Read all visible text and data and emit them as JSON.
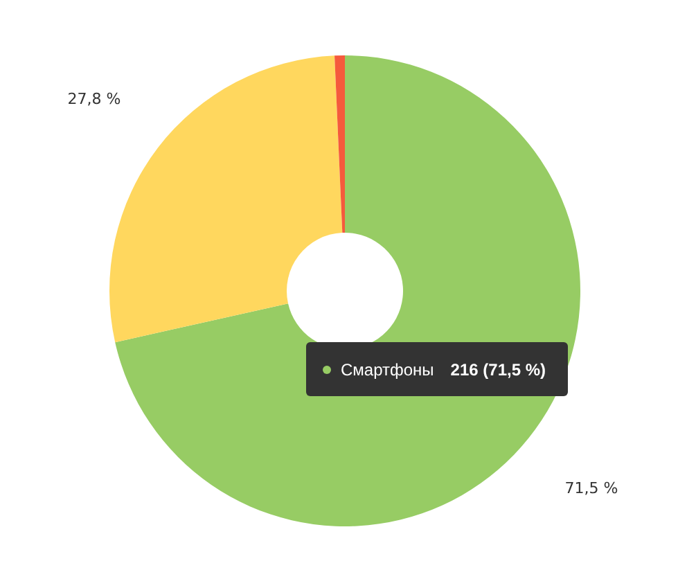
{
  "chart_data": {
    "type": "donut",
    "categories": [
      "Смартфоны",
      null,
      null
    ],
    "values": [
      71.5,
      27.8,
      0.7
    ],
    "colors": [
      "#97cc64",
      "#ffd75e",
      "#f55a3c"
    ],
    "value_labels": [
      "71,5 %",
      "27,8 %",
      null
    ],
    "annotations": [
      "216 (71,5 %)"
    ],
    "legend": "bottom right"
  }
}
